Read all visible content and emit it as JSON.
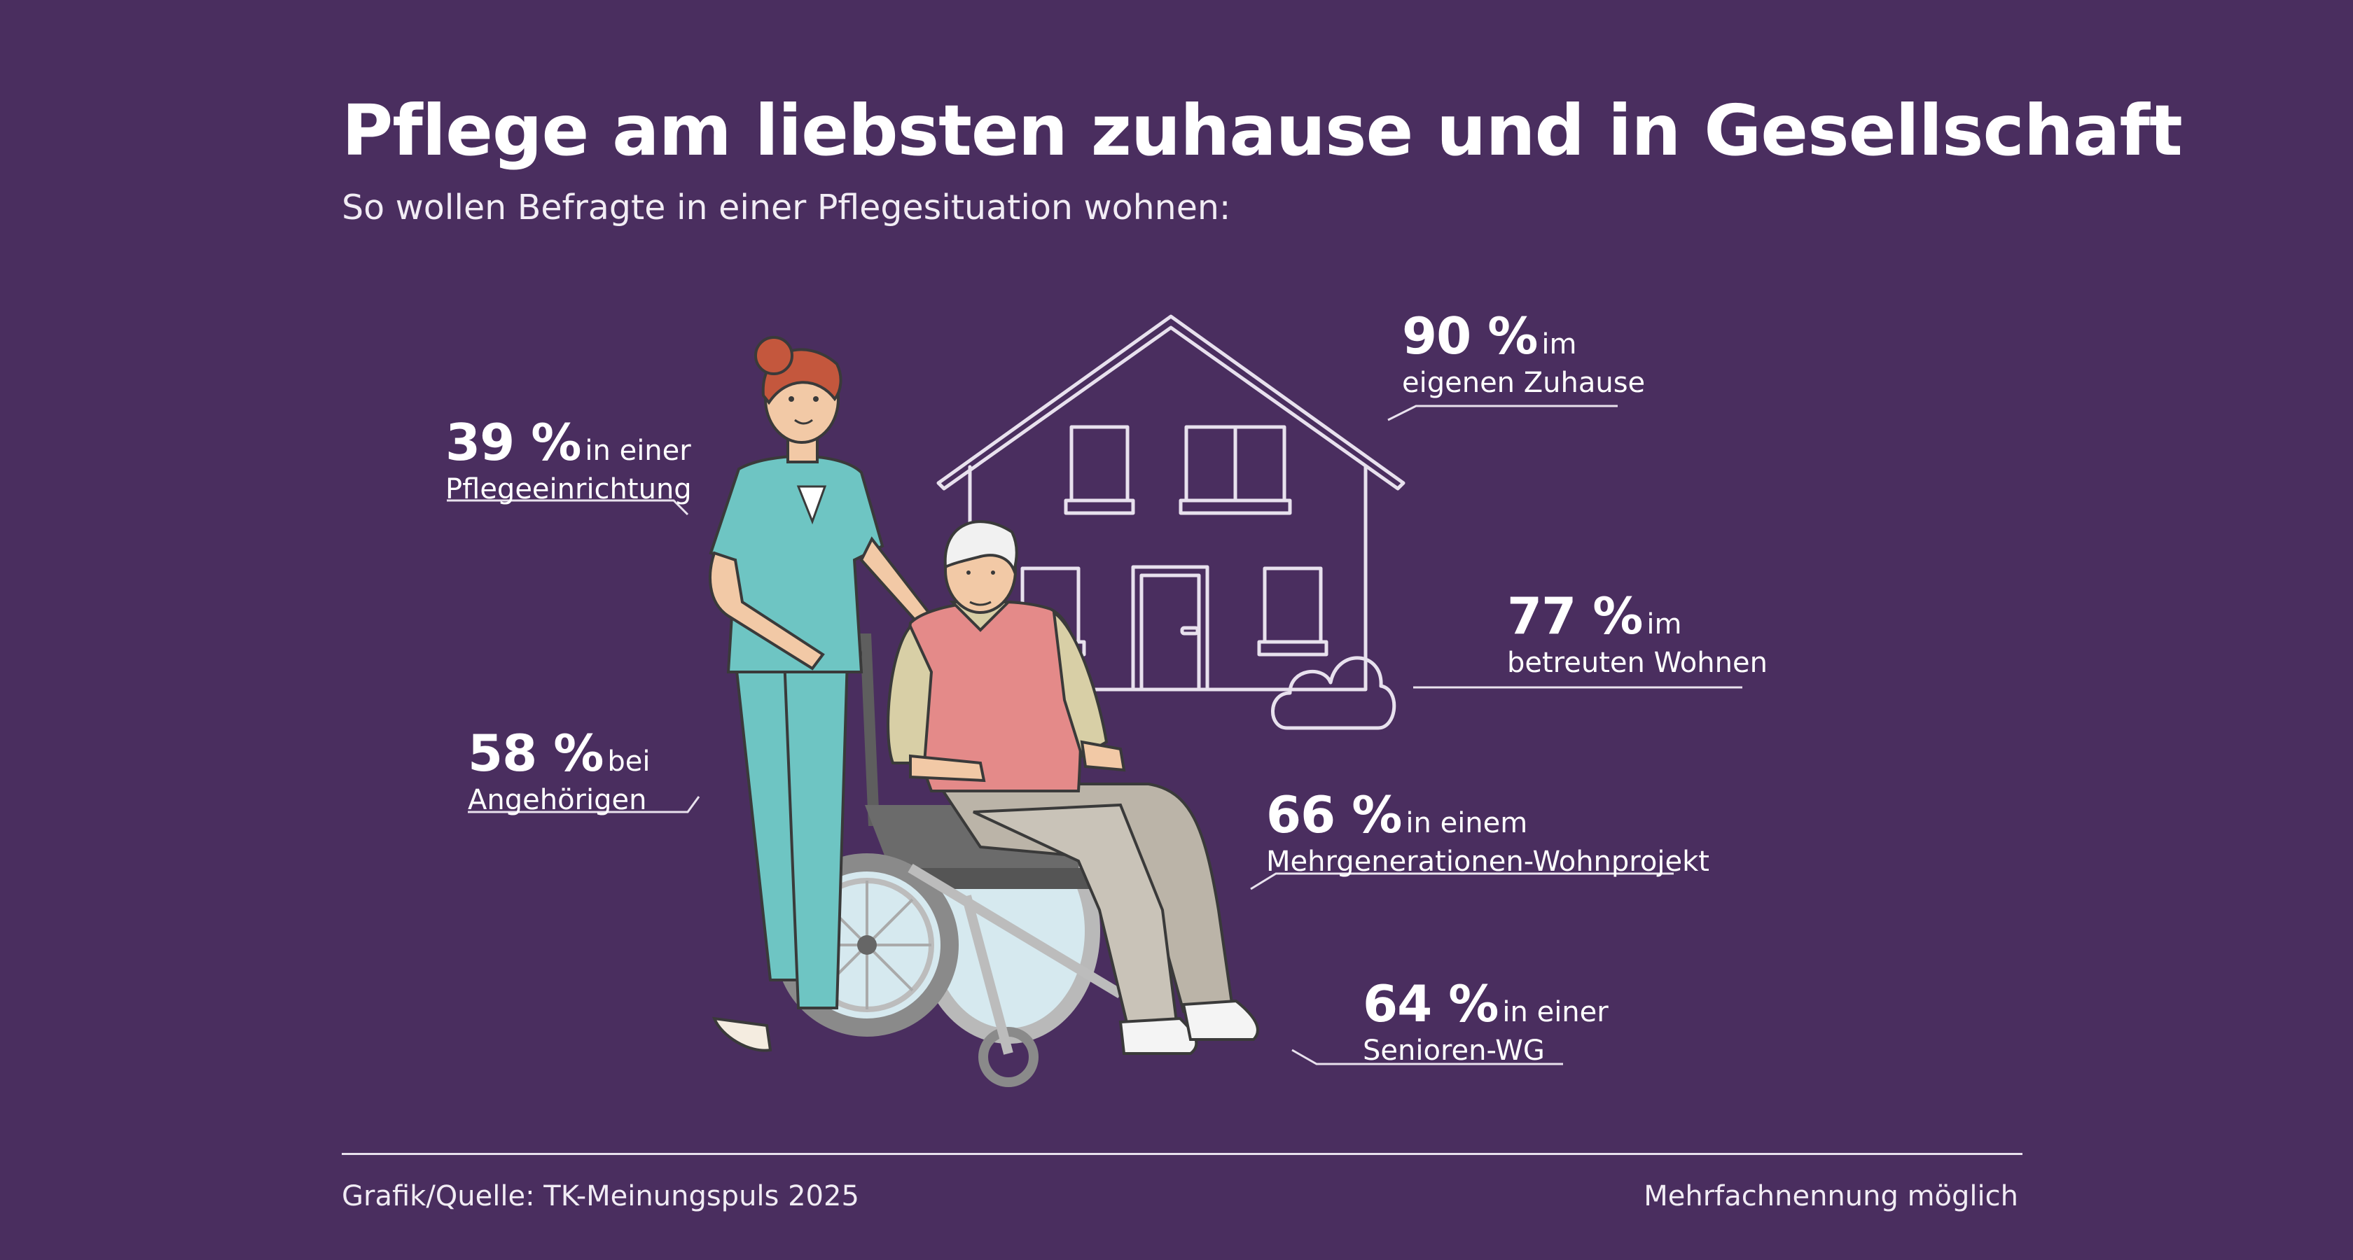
{
  "header": {
    "title": "Pflege am liebsten zuhause und in Gesellschaft",
    "subtitle": "So wollen Befragte in einer Pflegesituation wohnen:"
  },
  "footer": {
    "source": "Grafik/Quelle: TK-Meinungspuls 2025",
    "note": "Mehrfachnennung möglich"
  },
  "colors": {
    "background": "#4a2e5f",
    "text": "#ffffff",
    "scrubs": "#6ec5c3",
    "vest": "#e48a89",
    "hair_nurse": "#c4573d",
    "trousers": "#bbb4a8"
  },
  "chart_data": {
    "type": "annotated-illustration",
    "unit": "%",
    "items": [
      {
        "value": 90,
        "label_pct": "90 %",
        "text_inline": "im",
        "text_second": "eigenen Zuhause"
      },
      {
        "value": 77,
        "label_pct": "77 %",
        "text_inline": "im",
        "text_second": "betreuten Wohnen"
      },
      {
        "value": 66,
        "label_pct": "66 %",
        "text_inline": "in einem",
        "text_second": "Mehrgenerationen-Wohnprojekt"
      },
      {
        "value": 64,
        "label_pct": "64 %",
        "text_inline": "in einer",
        "text_second": "Senioren-WG"
      },
      {
        "value": 58,
        "label_pct": "58 %",
        "text_inline": "bei",
        "text_second": "Angehörigen"
      },
      {
        "value": 39,
        "label_pct": "39 %",
        "text_inline": "in einer",
        "text_second": "Pflegeeinrichtung"
      }
    ]
  }
}
